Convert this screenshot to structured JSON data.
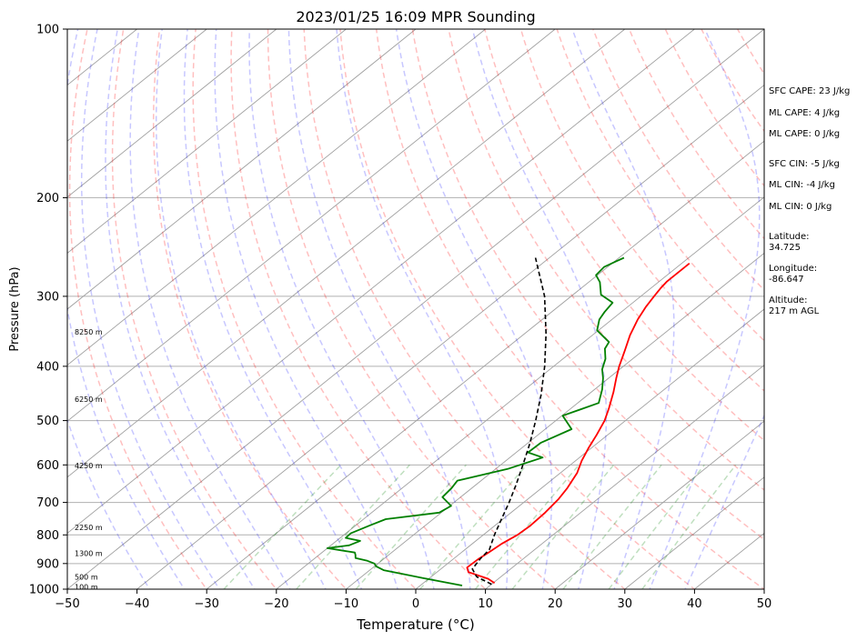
{
  "chart_data": {
    "type": "line",
    "title": "2023/01/25 16:09 MPR Sounding",
    "xlabel": "Temperature (°C)",
    "ylabel": "Pressure (hPa)",
    "xlim": [
      -50,
      50
    ],
    "ylim": [
      1000,
      100
    ],
    "y_scale": "log",
    "xticks": [
      -50,
      -40,
      -30,
      -20,
      -10,
      0,
      10,
      20,
      30,
      40,
      50
    ],
    "yticks": [
      100,
      200,
      300,
      400,
      500,
      600,
      700,
      800,
      900,
      1000
    ],
    "grid": true,
    "series": [
      {
        "role": "temperature",
        "color": "#ff0000",
        "points": [
          [
            10.2,
            975
          ],
          [
            8.5,
            958
          ],
          [
            6.5,
            945
          ],
          [
            4.5,
            932
          ],
          [
            3.5,
            915
          ],
          [
            3.6,
            885
          ],
          [
            3.9,
            860
          ],
          [
            4.2,
            830
          ],
          [
            4.9,
            800
          ],
          [
            5.1,
            770
          ],
          [
            4.9,
            730
          ],
          [
            4.4,
            690
          ],
          [
            3.7,
            660
          ],
          [
            2.4,
            620
          ],
          [
            0.9,
            590
          ],
          [
            -0.4,
            560
          ],
          [
            -1.6,
            530
          ],
          [
            -3.0,
            500
          ],
          [
            -4.6,
            475
          ],
          [
            -6.8,
            445
          ],
          [
            -8.9,
            420
          ],
          [
            -10.6,
            400
          ],
          [
            -12.6,
            375
          ],
          [
            -14.6,
            352
          ],
          [
            -16.3,
            330
          ],
          [
            -17.4,
            313
          ],
          [
            -18.1,
            300
          ],
          [
            -18.6,
            290
          ],
          [
            -18.9,
            282
          ],
          [
            -18.9,
            262
          ]
        ]
      },
      {
        "role": "dewpoint",
        "color": "#008000",
        "points": [
          [
            6.0,
            985
          ],
          [
            2.5,
            970
          ],
          [
            -1.0,
            955
          ],
          [
            -4.5,
            940
          ],
          [
            -8.0,
            925
          ],
          [
            -9.8,
            910
          ],
          [
            -10.5,
            900
          ],
          [
            -12.0,
            890
          ],
          [
            -14.2,
            880
          ],
          [
            -14.8,
            868
          ],
          [
            -15.3,
            860
          ],
          [
            -20.0,
            845
          ],
          [
            -17.4,
            835
          ],
          [
            -16.6,
            820
          ],
          [
            -19.2,
            810
          ],
          [
            -19.3,
            795
          ],
          [
            -18.0,
            770
          ],
          [
            -16.8,
            750
          ],
          [
            -10.3,
            730
          ],
          [
            -9.8,
            710
          ],
          [
            -12.6,
            685
          ],
          [
            -12.9,
            660
          ],
          [
            -13.4,
            640
          ],
          [
            -8.3,
            610
          ],
          [
            -5.3,
            582
          ],
          [
            -8.3,
            570
          ],
          [
            -8.2,
            548
          ],
          [
            -6.2,
            518
          ],
          [
            -9.9,
            490
          ],
          [
            -7.0,
            465
          ],
          [
            -8.9,
            440
          ],
          [
            -10.8,
            420
          ],
          [
            -12.5,
            405
          ],
          [
            -13.9,
            388
          ],
          [
            -15.8,
            372
          ],
          [
            -16.4,
            362
          ],
          [
            -20.2,
            345
          ],
          [
            -21.8,
            330
          ],
          [
            -22.4,
            320
          ],
          [
            -22.9,
            308
          ],
          [
            -26.0,
            298
          ],
          [
            -28.4,
            283
          ],
          [
            -30.2,
            275
          ],
          [
            -30.5,
            266
          ],
          [
            -29.8,
            260
          ],
          [
            -29.3,
            256
          ]
        ]
      },
      {
        "role": "parcel",
        "color": "#000000",
        "points": [
          [
            10.0,
            980
          ],
          [
            6.5,
            950
          ],
          [
            4.5,
            920
          ],
          [
            3.8,
            880
          ],
          [
            3.5,
            850
          ],
          [
            1.6,
            800
          ],
          [
            -0.2,
            750
          ],
          [
            -2.1,
            700
          ],
          [
            -4.3,
            650
          ],
          [
            -6.8,
            600
          ],
          [
            -9.6,
            550
          ],
          [
            -12.9,
            500
          ],
          [
            -16.7,
            450
          ],
          [
            -21.3,
            400
          ],
          [
            -26.9,
            350
          ],
          [
            -33.8,
            300
          ],
          [
            -42.0,
            256
          ]
        ]
      }
    ],
    "height_labels": [
      {
        "p": 990,
        "text": "100 m"
      },
      {
        "p": 950,
        "text": "500 m"
      },
      {
        "p": 862,
        "text": "1300 m"
      },
      {
        "p": 775,
        "text": "2250 m"
      },
      {
        "p": 602,
        "text": "4250 m"
      },
      {
        "p": 458,
        "text": "6250 m"
      },
      {
        "p": 347,
        "text": "8250 m"
      }
    ],
    "colors": {
      "dry_adiabats": "#ff0000",
      "moist_adiabats": "#0000ff",
      "mixing_ratio": "#008000",
      "isotherms": "#a0a0a0"
    }
  },
  "stats": {
    "sfc_cape": "SFC CAPE: 23 J/kg",
    "ml_cape_1": "ML CAPE: 4 J/kg",
    "ml_cape_2": "ML CAPE: 0 J/kg",
    "sfc_cin": "SFC CIN: -5 J/kg",
    "ml_cin_1": "ML CIN: -4 J/kg",
    "ml_cin_2": "ML CIN: 0 J/kg",
    "latitude": "Latitude:\n34.725",
    "longitude": "Longitude:\n-86.647",
    "altitude": "Altitude:\n217 m AGL"
  }
}
